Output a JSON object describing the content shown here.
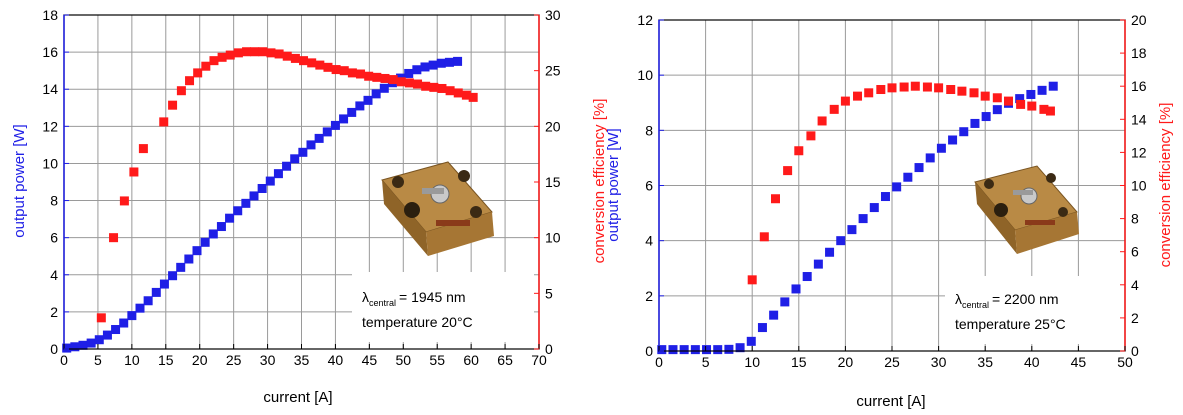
{
  "chart_data": [
    {
      "type": "scatter",
      "xlabel": "current [A]",
      "ylabel_left": "output power [W]",
      "ylabel_right": "conversion efficiency [%]",
      "xlim": [
        0,
        70
      ],
      "ylim_left": [
        0,
        18
      ],
      "ylim_right": [
        0,
        30
      ],
      "xticks": [
        0,
        5,
        10,
        15,
        20,
        25,
        30,
        35,
        40,
        45,
        50,
        55,
        60,
        65,
        70
      ],
      "yticks_left": [
        0,
        2,
        4,
        6,
        8,
        10,
        12,
        14,
        16,
        18
      ],
      "yticks_right": [
        0,
        5,
        10,
        15,
        20,
        25,
        30
      ],
      "grid": true,
      "colors": {
        "power": "#1f1fe6",
        "efficiency": "#ff1a1a",
        "left_axis": "#1f1fe6",
        "right_axis": "#ff1a1a"
      },
      "annotation": {
        "lambda_symbol": "λ",
        "lambda_sub": "central",
        "lambda_value": "= 1945 nm",
        "temperature": "temperature 20°C"
      },
      "series": [
        {
          "axis": "left",
          "x": [
            0.4,
            1.6,
            2.8,
            4.0,
            5.2,
            6.4,
            7.6,
            8.8,
            10.0,
            11.2,
            12.4,
            13.6,
            14.8,
            16.0,
            17.2,
            18.4,
            19.6,
            20.8,
            22.0,
            23.2,
            24.4,
            25.6,
            26.8,
            28.0,
            29.2,
            30.4,
            31.6,
            32.8,
            34.0,
            35.2,
            36.4,
            37.6,
            38.8,
            40.0,
            41.2,
            42.4,
            43.6,
            44.8,
            46.0,
            47.2,
            48.4,
            49.6,
            50.8,
            52.0,
            53.2,
            54.4,
            55.6,
            56.8,
            58.0
          ],
          "y": [
            0.05,
            0.12,
            0.2,
            0.32,
            0.5,
            0.75,
            1.05,
            1.4,
            1.8,
            2.2,
            2.6,
            3.05,
            3.5,
            3.95,
            4.4,
            4.85,
            5.3,
            5.75,
            6.2,
            6.6,
            7.05,
            7.45,
            7.85,
            8.25,
            8.65,
            9.05,
            9.45,
            9.85,
            10.25,
            10.6,
            11.0,
            11.35,
            11.7,
            12.05,
            12.4,
            12.75,
            13.1,
            13.4,
            13.75,
            14.05,
            14.35,
            14.6,
            14.85,
            15.05,
            15.2,
            15.3,
            15.4,
            15.45,
            15.5
          ]
        },
        {
          "axis": "right",
          "x": [
            5.5,
            7.3,
            8.9,
            10.3,
            11.7,
            14.7,
            16.0,
            17.3,
            18.5,
            19.7,
            20.9,
            22.1,
            23.3,
            24.5,
            25.7,
            26.9,
            28.1,
            29.3,
            30.5,
            31.7,
            32.9,
            34.1,
            35.3,
            36.5,
            37.7,
            38.9,
            40.1,
            41.3,
            42.5,
            43.7,
            44.9,
            46.1,
            47.3,
            48.5,
            49.7,
            50.9,
            52.1,
            53.3,
            54.5,
            55.7,
            56.9,
            58.1,
            59.3,
            60.3
          ],
          "y": [
            2.8,
            10.0,
            13.3,
            15.9,
            18.0,
            20.4,
            21.9,
            23.2,
            24.1,
            24.8,
            25.4,
            25.9,
            26.2,
            26.4,
            26.6,
            26.7,
            26.7,
            26.7,
            26.6,
            26.5,
            26.3,
            26.1,
            25.9,
            25.7,
            25.5,
            25.3,
            25.1,
            25.0,
            24.8,
            24.7,
            24.5,
            24.4,
            24.3,
            24.2,
            24.0,
            23.9,
            23.8,
            23.6,
            23.5,
            23.4,
            23.2,
            23.0,
            22.8,
            22.6
          ]
        }
      ]
    },
    {
      "type": "scatter",
      "xlabel": "current [A]",
      "ylabel_left": "output power [W]",
      "ylabel_right": "conversion efficiency [%]",
      "xlim": [
        0,
        50
      ],
      "ylim_left": [
        0,
        12
      ],
      "ylim_right": [
        0,
        20
      ],
      "xticks": [
        0,
        5,
        10,
        15,
        20,
        25,
        30,
        35,
        40,
        45,
        50
      ],
      "yticks_left": [
        0,
        2,
        4,
        6,
        8,
        10,
        12
      ],
      "yticks_right": [
        0,
        2,
        4,
        6,
        8,
        10,
        12,
        14,
        16,
        18,
        20
      ],
      "grid": true,
      "colors": {
        "power": "#1f1fe6",
        "efficiency": "#ff1a1a",
        "left_axis": "#1f1fe6",
        "right_axis": "#ff1a1a"
      },
      "annotation": {
        "lambda_symbol": "λ",
        "lambda_sub": "central",
        "lambda_value": "= 2200 nm",
        "temperature": "temperature 25°C"
      },
      "series": [
        {
          "axis": "left",
          "x": [
            0.3,
            1.5,
            2.7,
            3.9,
            5.1,
            6.3,
            7.5,
            8.7,
            9.9,
            11.1,
            12.3,
            13.5,
            14.7,
            15.9,
            17.1,
            18.3,
            19.5,
            20.7,
            21.9,
            23.1,
            24.3,
            25.5,
            26.7,
            27.9,
            29.1,
            30.3,
            31.5,
            32.7,
            33.9,
            35.1,
            36.3,
            37.5,
            38.7,
            39.9,
            41.1,
            42.3
          ],
          "y": [
            0.05,
            0.05,
            0.05,
            0.05,
            0.05,
            0.05,
            0.06,
            0.12,
            0.35,
            0.85,
            1.3,
            1.78,
            2.25,
            2.7,
            3.15,
            3.58,
            4.0,
            4.4,
            4.8,
            5.2,
            5.6,
            5.95,
            6.3,
            6.65,
            7.0,
            7.35,
            7.65,
            7.95,
            8.25,
            8.5,
            8.75,
            8.98,
            9.15,
            9.3,
            9.45,
            9.6
          ]
        },
        {
          "axis": "right",
          "x": [
            10.0,
            11.3,
            12.5,
            13.8,
            15.0,
            16.3,
            17.5,
            18.8,
            20.0,
            21.3,
            22.5,
            23.8,
            25.0,
            26.3,
            27.5,
            28.8,
            30.0,
            31.3,
            32.5,
            33.8,
            35.0,
            36.3,
            37.5,
            38.8,
            40.0,
            41.3,
            42.0
          ],
          "y": [
            4.3,
            6.9,
            9.2,
            10.9,
            12.1,
            13.0,
            13.9,
            14.6,
            15.1,
            15.4,
            15.6,
            15.8,
            15.9,
            15.95,
            16.0,
            15.95,
            15.9,
            15.8,
            15.7,
            15.6,
            15.4,
            15.3,
            15.1,
            14.9,
            14.8,
            14.6,
            14.5
          ]
        }
      ]
    }
  ]
}
